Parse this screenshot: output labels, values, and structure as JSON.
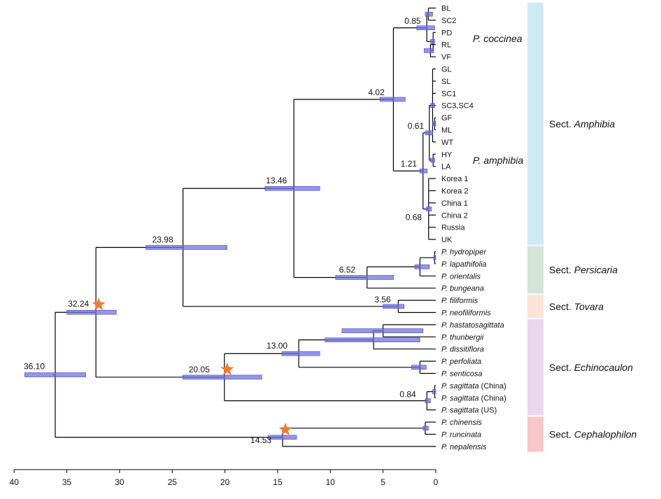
{
  "tips": [
    {
      "id": "BL",
      "label": "BL"
    },
    {
      "id": "SC2",
      "label": "SC2"
    },
    {
      "id": "PD",
      "label": "PD"
    },
    {
      "id": "RL",
      "label": "RL"
    },
    {
      "id": "VF",
      "label": "VF"
    },
    {
      "id": "GL",
      "label": "GL"
    },
    {
      "id": "SL",
      "label": "SL"
    },
    {
      "id": "SC1",
      "label": "SC1"
    },
    {
      "id": "SC3",
      "label": "SC3,SC4"
    },
    {
      "id": "GF",
      "label": "GF"
    },
    {
      "id": "ML",
      "label": "ML"
    },
    {
      "id": "WT",
      "label": "WT"
    },
    {
      "id": "HY",
      "label": "HY"
    },
    {
      "id": "LA",
      "label": "LA"
    },
    {
      "id": "K1",
      "label": "Korea 1"
    },
    {
      "id": "K2",
      "label": "Korea 2"
    },
    {
      "id": "C1",
      "label": "China 1"
    },
    {
      "id": "C2",
      "label": "China 2"
    },
    {
      "id": "RU",
      "label": "Russia"
    },
    {
      "id": "UK",
      "label": "UK"
    },
    {
      "id": "hyd",
      "label": "P. hydropiper",
      "italic": true
    },
    {
      "id": "lap",
      "label": "P. lapathifolia",
      "italic": true
    },
    {
      "id": "ori",
      "label": "P. orientalis",
      "italic": true
    },
    {
      "id": "bun",
      "label": "P. bungeana",
      "italic": true
    },
    {
      "id": "fil",
      "label": "P. filiformis",
      "italic": true
    },
    {
      "id": "neo",
      "label": "P. neofiliformis",
      "italic": true
    },
    {
      "id": "has",
      "label": "P. hastatosagittata",
      "italic": true
    },
    {
      "id": "thu",
      "label": "P. thunbergii",
      "italic": true
    },
    {
      "id": "dis",
      "label": "P. dissitiflora",
      "italic": true
    },
    {
      "id": "per",
      "label": "P. perfoliata",
      "italic": true
    },
    {
      "id": "sen",
      "label": "P. senticosa",
      "italic": true
    },
    {
      "id": "sa1",
      "label": "P. sagittata",
      "italic": true,
      "suffix": " (China)"
    },
    {
      "id": "sa2",
      "label": "P. sagittata",
      "italic": true,
      "suffix": " (China)"
    },
    {
      "id": "sa3",
      "label": "P. sagittata",
      "italic": true,
      "suffix": " (US)"
    },
    {
      "id": "chi",
      "label": "P. chinensis",
      "italic": true
    },
    {
      "id": "run",
      "label": "P. runcinata",
      "italic": true
    },
    {
      "id": "nep",
      "label": "P. nepalensis",
      "italic": true
    }
  ],
  "nodes": [
    {
      "id": "root",
      "age": 36.1,
      "label": "36.10",
      "hpd": [
        39.0,
        33.2
      ],
      "children": [
        "A",
        "cep"
      ]
    },
    {
      "id": "A",
      "age": 32.24,
      "label": "32.24",
      "hpd": [
        35.0,
        30.3
      ],
      "star": true,
      "children": [
        "B",
        "ech"
      ]
    },
    {
      "id": "B",
      "age": 23.98,
      "label": "23.98",
      "hpd": [
        27.5,
        19.8
      ],
      "children": [
        "C",
        "tov"
      ]
    },
    {
      "id": "C",
      "age": 13.46,
      "label": "13.46",
      "hpd": [
        16.2,
        11.0
      ],
      "children": [
        "amp",
        "per_sec"
      ]
    },
    {
      "id": "amp",
      "age": 4.02,
      "label": "4.02",
      "hpd": [
        5.3,
        2.9
      ],
      "children": [
        "coc",
        "amphibia"
      ]
    },
    {
      "id": "coc",
      "age": 0.85,
      "label": "0.85",
      "hpd": [
        1.8,
        0.1
      ],
      "children": [
        "cA",
        "cB"
      ]
    },
    {
      "id": "cA",
      "age": 0.7,
      "hpd": [
        1.0,
        0.3
      ],
      "children": [
        "BL",
        "SC2"
      ]
    },
    {
      "id": "cB",
      "age": 0.25,
      "hpd": [
        0.5,
        0.1
      ],
      "children": [
        "PD",
        "cB2"
      ]
    },
    {
      "id": "cB2",
      "age": 0.5,
      "hpd": [
        1.1,
        0.2
      ],
      "children": [
        "RL",
        "VF"
      ]
    },
    {
      "id": "amphibia",
      "age": 1.21,
      "label": "1.21",
      "hpd": [
        1.5,
        0.8
      ],
      "children": [
        "wtc",
        "asia"
      ]
    },
    {
      "id": "wtc",
      "age": 0.61,
      "label": "0.61",
      "hpd": [
        1.0,
        0.3
      ],
      "children": [
        "glc",
        "hyla"
      ]
    },
    {
      "id": "glc",
      "age": 0.3,
      "hpd": [
        0.5,
        0.1
      ],
      "children": [
        "GL",
        "SL",
        "SC1",
        "SC3",
        "gfm",
        "WT"
      ]
    },
    {
      "id": "gfm",
      "age": 0.1,
      "hpd": [
        0.3,
        0.0
      ],
      "children": [
        "GF",
        "ML"
      ]
    },
    {
      "id": "hyla",
      "age": 0.25,
      "hpd": [
        0.5,
        0.1
      ],
      "children": [
        "HY",
        "LA"
      ]
    },
    {
      "id": "asia",
      "age": 0.68,
      "label": "0.68",
      "hpd": [
        0.9,
        0.4
      ],
      "children": [
        "K1",
        "K2",
        "C1",
        "C2",
        "RU",
        "UK"
      ]
    },
    {
      "id": "per_sec",
      "age": 6.52,
      "label": "6.52",
      "hpd": [
        9.5,
        4.0
      ],
      "children": [
        "pp",
        "bun"
      ]
    },
    {
      "id": "pp",
      "age": 1.5,
      "hpd": [
        2.0,
        0.6
      ],
      "children": [
        "hl",
        "ori"
      ]
    },
    {
      "id": "hl",
      "age": 0.1,
      "hpd": [
        0.2,
        0.0
      ],
      "children": [
        "hyd",
        "lap"
      ]
    },
    {
      "id": "tov",
      "age": 3.56,
      "label": "3.56",
      "hpd": [
        5.0,
        3.0
      ],
      "children": [
        "fil",
        "neo"
      ]
    },
    {
      "id": "ech",
      "age": 20.05,
      "label": "20.05",
      "hpd": [
        24.0,
        16.5
      ],
      "star": true,
      "children": [
        "E1",
        "sag"
      ]
    },
    {
      "id": "E1",
      "age": 13.0,
      "label": "13.00",
      "hpd": [
        14.6,
        11.0
      ],
      "children": [
        "htd",
        "ps"
      ]
    },
    {
      "id": "htd",
      "age": 5.9,
      "hpd": [
        10.5,
        1.5
      ],
      "children": [
        "ht",
        "dis"
      ]
    },
    {
      "id": "ht",
      "age": 5.0,
      "hpd": [
        8.9,
        1.2
      ],
      "children": [
        "has",
        "thu"
      ]
    },
    {
      "id": "ps",
      "age": 1.5,
      "hpd": [
        2.3,
        0.9
      ],
      "children": [
        "per",
        "sen"
      ]
    },
    {
      "id": "sag",
      "age": 0.84,
      "label": "0.84",
      "hpd": [
        1.0,
        0.5
      ],
      "children": [
        "s2",
        "sa3"
      ]
    },
    {
      "id": "s2",
      "age": 0.1,
      "hpd": [
        0.3,
        0.0
      ],
      "children": [
        "sa1",
        "sa2"
      ]
    },
    {
      "id": "cep",
      "age": 14.53,
      "label": "14.53",
      "hpd": [
        15.9,
        13.2
      ],
      "star": true,
      "children": [
        "cr",
        "nep"
      ]
    },
    {
      "id": "cr",
      "age": 1.0,
      "hpd": [
        1.2,
        0.7
      ],
      "children": [
        "chi",
        "run"
      ]
    }
  ],
  "species_labels": [
    {
      "text": "P. coccinea",
      "tips": [
        "PD",
        "RL"
      ]
    },
    {
      "text": "P. amphibia",
      "tips": [
        "HY",
        "LA"
      ]
    }
  ],
  "sections": [
    {
      "prefix": "Sect. ",
      "name": "Amphibia",
      "from": "BL",
      "to": "UK",
      "color": "#cfeaf5"
    },
    {
      "prefix": "Sect. ",
      "name": "Persicaria",
      "from": "hyd",
      "to": "bun",
      "color": "#d4e4d6"
    },
    {
      "prefix": "Sect. ",
      "name": "Tovara",
      "from": "fil",
      "to": "neo",
      "color": "#fbe3d6"
    },
    {
      "prefix": "Sect. ",
      "name": "Echinocaulon",
      "from": "has",
      "to": "sa3",
      "color": "#ead7ec"
    },
    {
      "prefix": "Sect. ",
      "name": "Cephalophilon",
      "from": "chi",
      "to": "nep",
      "color": "#f7c7c9"
    }
  ],
  "axis": {
    "ticks": [
      40,
      35,
      30,
      25,
      20,
      15,
      10,
      5,
      0
    ],
    "min": 0,
    "max": 40,
    "reversed": true
  },
  "colors": {
    "branch": "#000000",
    "hpd": "#6f72dc",
    "star": "#ee7d31"
  }
}
